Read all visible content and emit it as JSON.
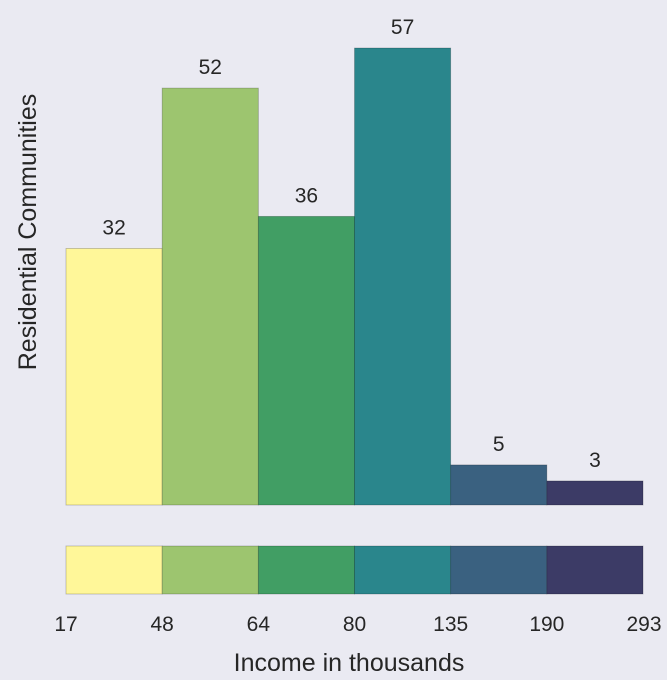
{
  "chart_data": {
    "type": "bar",
    "bin_edges": [
      "17",
      "48",
      "64",
      "80",
      "135",
      "190",
      "293"
    ],
    "values": [
      32,
      52,
      36,
      57,
      5,
      3
    ],
    "colors": [
      "#fff799",
      "#9dc56f",
      "#419e64",
      "#2a868c",
      "#3a6180",
      "#3c3b66"
    ],
    "xlabel": "Income in thousands",
    "ylabel": "Residential Communities",
    "ylim": [
      0,
      57
    ],
    "grid": false,
    "legend": "none",
    "colorbar": true
  }
}
